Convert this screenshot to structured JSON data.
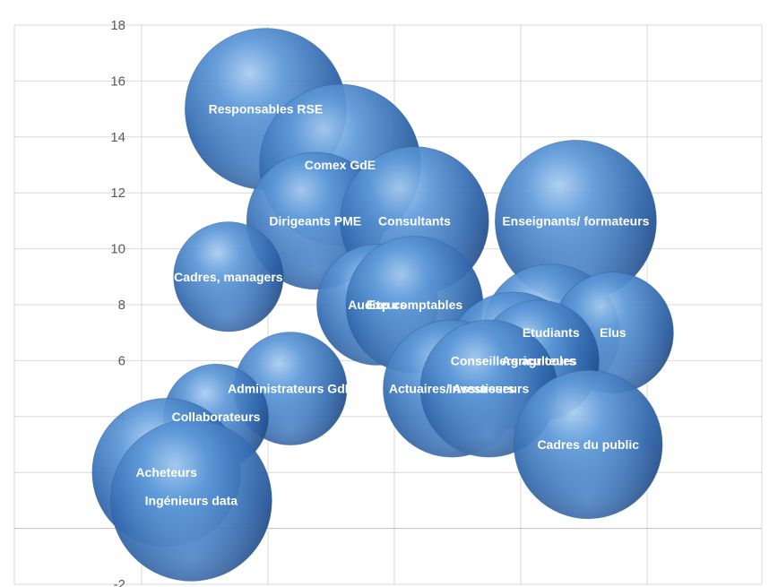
{
  "chart_data": {
    "type": "bubble",
    "title": "",
    "xlabel": "",
    "ylabel": "",
    "xlim": [
      0,
      5
    ],
    "ylim": [
      -2,
      18
    ],
    "yticks": [
      -2,
      0,
      2,
      4,
      6,
      8,
      10,
      12,
      14,
      16,
      18
    ],
    "grid": true,
    "legend": "none",
    "bubble_color": "#3b76bd",
    "series": [
      {
        "label": "Responsables RSE",
        "x": 1.0,
        "y": 15,
        "size": 1.0
      },
      {
        "label": "Comex GdE",
        "x": 1.6,
        "y": 13,
        "size": 1.0
      },
      {
        "label": "Dirigeants PME",
        "x": 1.4,
        "y": 11,
        "size": 0.85
      },
      {
        "label": "Consultants",
        "x": 2.2,
        "y": 11,
        "size": 0.92
      },
      {
        "label": "Enseignants/ formateurs",
        "x": 3.5,
        "y": 11,
        "size": 1.0
      },
      {
        "label": "Cadres, managers",
        "x": 0.7,
        "y": 9,
        "size": 0.68
      },
      {
        "label": "Auditeurs",
        "x": 1.9,
        "y": 8,
        "size": 0.75
      },
      {
        "label": "Exp comptables",
        "x": 2.2,
        "y": 8,
        "size": 0.85
      },
      {
        "label": "Etudiants",
        "x": 3.3,
        "y": 7,
        "size": 0.85
      },
      {
        "label": "Elus",
        "x": 3.8,
        "y": 7,
        "size": 0.75
      },
      {
        "label": "Conseillers agricoles",
        "x": 3.0,
        "y": 6,
        "size": 0.85
      },
      {
        "label": "Agriculteurs",
        "x": 3.2,
        "y": 6,
        "size": 0.75
      },
      {
        "label": "Actuaires/ Assureurs",
        "x": 2.5,
        "y": 5,
        "size": 0.85
      },
      {
        "label": "Investisseurs",
        "x": 2.8,
        "y": 5,
        "size": 0.85
      },
      {
        "label": "Administrateurs GdE",
        "x": 1.2,
        "y": 5,
        "size": 0.7
      },
      {
        "label": "Collaborateurs",
        "x": 0.6,
        "y": 4,
        "size": 0.65
      },
      {
        "label": "Cadres du public",
        "x": 3.6,
        "y": 3,
        "size": 0.92
      },
      {
        "label": "Acheteurs",
        "x": 0.2,
        "y": 2,
        "size": 0.92
      },
      {
        "label": "Ingénieurs data",
        "x": 0.4,
        "y": 1,
        "size": 1.0
      }
    ]
  }
}
